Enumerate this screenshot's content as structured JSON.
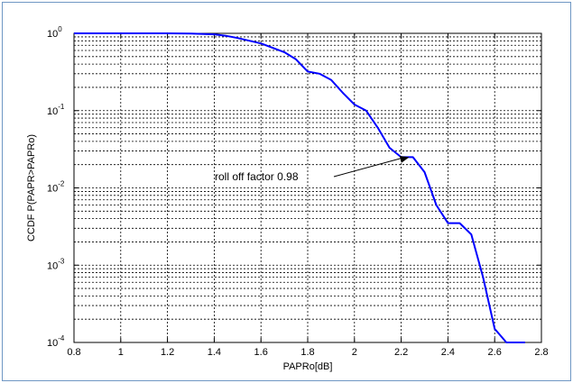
{
  "chart_data": {
    "type": "line",
    "title": "",
    "xlabel": "PAPRo[dB]",
    "ylabel": "CCDF P(PAPR>PAPRo)",
    "xlim": [
      0.8,
      2.8
    ],
    "ylim": [
      0.0001,
      1
    ],
    "y_scale": "log",
    "grid": true,
    "x_ticks": [
      "0.8",
      "1",
      "1.2",
      "1.4",
      "1.6",
      "1.8",
      "2",
      "2.2",
      "2.4",
      "2.6",
      "2.8"
    ],
    "x_tick_values": [
      0.8,
      1.0,
      1.2,
      1.4,
      1.6,
      1.8,
      2.0,
      2.2,
      2.4,
      2.6,
      2.8
    ],
    "y_ticks": [
      {
        "base": "10",
        "exp": "0",
        "value": 1
      },
      {
        "base": "10",
        "exp": "-1",
        "value": 0.1
      },
      {
        "base": "10",
        "exp": "-2",
        "value": 0.01
      },
      {
        "base": "10",
        "exp": "-3",
        "value": 0.001
      },
      {
        "base": "10",
        "exp": "-4",
        "value": 0.0001
      }
    ],
    "series": [
      {
        "color": "#0000ff",
        "x": [
          0.8,
          1.0,
          1.2,
          1.3,
          1.4,
          1.45,
          1.5,
          1.6,
          1.7,
          1.75,
          1.8,
          1.85,
          1.9,
          1.95,
          2.0,
          2.05,
          2.1,
          2.15,
          2.2,
          2.25,
          2.3,
          2.35,
          2.4,
          2.45,
          2.5,
          2.55,
          2.6,
          2.65,
          2.7,
          2.73
        ],
        "y": [
          1.0,
          1.0,
          1.0,
          0.995,
          0.97,
          0.93,
          0.87,
          0.74,
          0.57,
          0.46,
          0.32,
          0.3,
          0.25,
          0.17,
          0.12,
          0.1,
          0.06,
          0.033,
          0.025,
          0.025,
          0.016,
          0.006,
          0.0035,
          0.0035,
          0.0025,
          0.0007,
          0.00015,
          0.0001,
          0.0001,
          0.0001
        ]
      }
    ],
    "annotation": {
      "text": "roll off factor 0.98",
      "point": [
        2.25,
        0.025
      ]
    }
  }
}
